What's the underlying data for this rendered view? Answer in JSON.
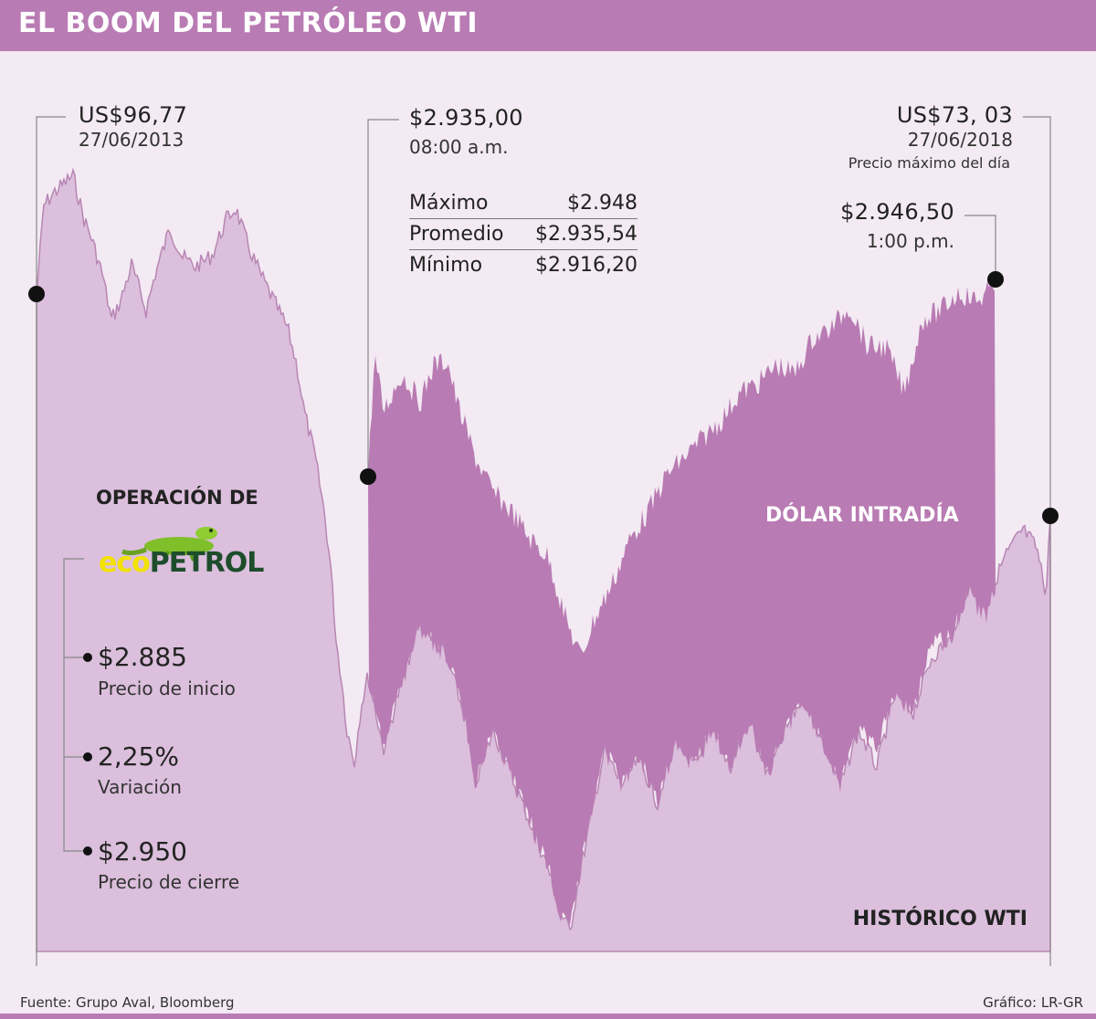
{
  "title": "EL BOOM DEL PETRÓLEO WTI",
  "annotations": {
    "wti_start": {
      "value": "US$96,77",
      "date": "27/06/2013"
    },
    "dollar_open": {
      "value": "$2.935,00",
      "time": "08:00 a.m."
    },
    "wti_end": {
      "value": "US$73, 03",
      "date": "27/06/2018",
      "note": "Precio máximo del día"
    },
    "dollar_peak": {
      "value": "$2.946,50",
      "time": "1:00 p.m."
    }
  },
  "stats": [
    {
      "label": "Máximo",
      "value": "$2.948"
    },
    {
      "label": "Promedio",
      "value": "$2.935,54"
    },
    {
      "label": "Mínimo",
      "value": "$2.916,20"
    }
  ],
  "ecopetrol": {
    "heading": "OPERACIÓN DE",
    "logo_eco": "eco",
    "logo_petrol": "PETROL",
    "items": [
      {
        "value": "$2.885",
        "label": "Precio de inicio"
      },
      {
        "value": "2,25%",
        "label": "Variación"
      },
      {
        "value": "$2.950",
        "label": "Precio de cierre"
      }
    ]
  },
  "labels": {
    "dollar_series": "DÓLAR INTRADÍA",
    "wti_series": "HISTÓRICO WTI"
  },
  "footer": {
    "source": "Fuente: Grupo Aval, Bloomberg",
    "credit": "Gráfico: LR-GR"
  },
  "colors": {
    "header": "#b97bb4",
    "wti_area": "#dbbfdc",
    "wti_line": "#b886b4",
    "dollar_area": "#b97bb3",
    "background": "#f3eaf3"
  },
  "chart_data": [
    {
      "type": "area",
      "series": [
        {
          "name": "HISTÓRICO WTI",
          "x": [
            "27/06/2013",
            "27/06/2018"
          ],
          "values": [
            96.77,
            73.03
          ]
        }
      ]
    },
    {
      "type": "area",
      "series": [
        {
          "name": "DÓLAR INTRADÍA",
          "x": [
            "08:00 a.m.",
            "1:00 p.m."
          ],
          "values": [
            2935.0,
            2946.5
          ]
        }
      ]
    }
  ]
}
